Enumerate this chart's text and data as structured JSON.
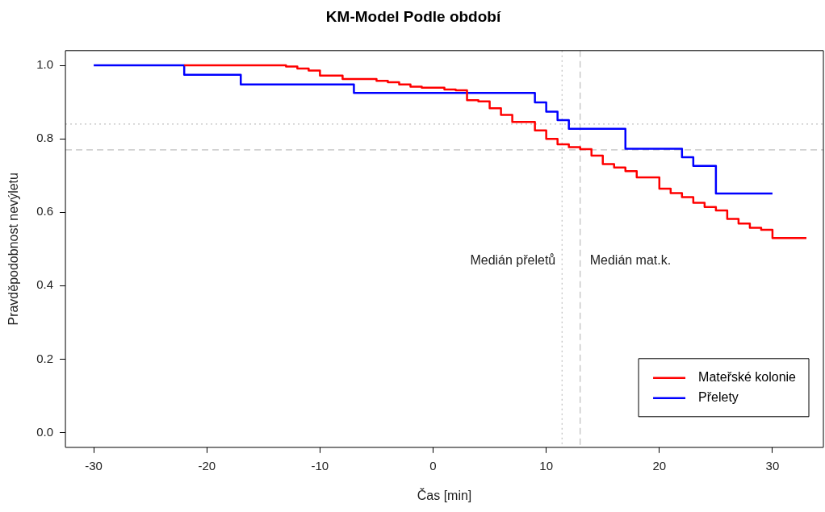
{
  "chart_data": {
    "type": "step",
    "title": "KM-Model Podle období",
    "xlabel": "Čas [min]",
    "ylabel": "Pravděpodobnost nevýletu",
    "series": [
      {
        "name": "Mateřské kolonie",
        "color": "#ff0000",
        "x": [
          -22,
          -13,
          -12,
          -11,
          -10,
          -8,
          -5,
          -4,
          -3,
          -2,
          -1,
          1,
          2,
          3,
          4,
          5,
          6,
          7,
          9,
          10,
          11,
          12,
          13,
          14,
          15,
          16,
          17,
          18,
          20,
          21,
          22,
          23,
          24,
          25,
          26,
          27,
          28,
          29,
          30,
          33
        ],
        "values": [
          1.0,
          0.997,
          0.991,
          0.986,
          0.972,
          0.963,
          0.958,
          0.954,
          0.948,
          0.942,
          0.939,
          0.934,
          0.932,
          0.905,
          0.902,
          0.883,
          0.865,
          0.846,
          0.823,
          0.8,
          0.785,
          0.777,
          0.772,
          0.754,
          0.731,
          0.722,
          0.712,
          0.695,
          0.664,
          0.652,
          0.641,
          0.626,
          0.614,
          0.605,
          0.582,
          0.569,
          0.558,
          0.552,
          0.53,
          0.53
        ]
      },
      {
        "name": "Přelety",
        "color": "#0000ff",
        "x": [
          -30,
          -22,
          -17,
          -7,
          9,
          10,
          11,
          12,
          17,
          22,
          23,
          25,
          30
        ],
        "values": [
          1.0,
          0.974,
          0.948,
          0.925,
          0.899,
          0.874,
          0.851,
          0.827,
          0.773,
          0.75,
          0.726,
          0.651,
          0.651
        ]
      }
    ],
    "xlim": [
      -32.5,
      34.5
    ],
    "xticks": [
      -30,
      -20,
      -10,
      0,
      10,
      20,
      30
    ],
    "ylim": [
      -0.04,
      1.04
    ],
    "yticks": [
      {
        "value": 0,
        "label": "0.0"
      },
      {
        "value": 0.2,
        "label": "0.2"
      },
      {
        "value": 0.4,
        "label": "0.4"
      },
      {
        "value": 0.6,
        "label": "0.6"
      },
      {
        "value": 0.8,
        "label": "0.8"
      },
      {
        "value": 1,
        "label": "1.0"
      }
    ],
    "ref_lines": [
      {
        "axis": "y",
        "value": 0.84,
        "color": "#bebebe",
        "line_style": "dotted"
      },
      {
        "axis": "y",
        "value": 0.77,
        "color": "#bebebe",
        "line_style": "dashed"
      },
      {
        "axis": "x",
        "value": 11.4,
        "label": "Medián přeletů",
        "color": "#bebebe",
        "line_style": "dotted"
      },
      {
        "axis": "x",
        "value": 13,
        "label": "Medián mat.k.",
        "color": "#bebebe",
        "line_style": "dashed"
      }
    ],
    "grid": false,
    "legend": "bottom right",
    "line_style": "solid",
    "marker": "none"
  }
}
